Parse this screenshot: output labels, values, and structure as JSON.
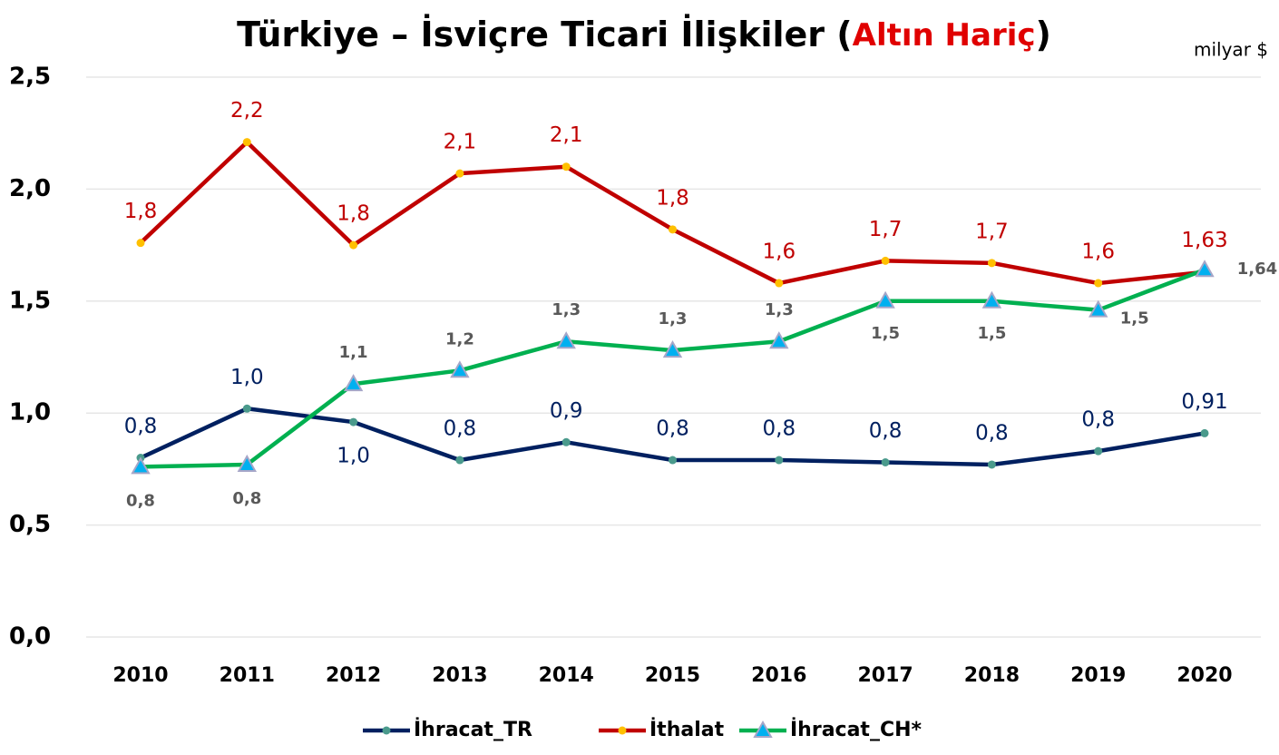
{
  "chart_data": {
    "type": "line",
    "title": "Türkiye – İsviçre Ticari İlişkiler",
    "title_suffix": [
      "(",
      "Altın Hariç",
      ")"
    ],
    "unit": "milyar $",
    "categories": [
      "2010",
      "2011",
      "2012",
      "2013",
      "2014",
      "2015",
      "2016",
      "2017",
      "2018",
      "2019",
      "2020"
    ],
    "ylim": [
      0,
      2.5
    ],
    "yticks": [
      {
        "value": 0,
        "label": "0,0"
      },
      {
        "value": 0.5,
        "label": "0,5"
      },
      {
        "value": 1,
        "label": "1,0"
      },
      {
        "value": 1.5,
        "label": "1,5"
      },
      {
        "value": 2,
        "label": "2,0"
      },
      {
        "value": 2.5,
        "label": "2,5"
      }
    ],
    "grid": true,
    "legend": "bottom",
    "series": [
      {
        "name": "İhracat_TR",
        "color": "#002060",
        "marker_color": "#4a9a8c",
        "values": [
          0.8,
          1.02,
          0.96,
          0.79,
          0.87,
          0.79,
          0.79,
          0.78,
          0.77,
          0.83,
          0.91
        ],
        "value_labels": [
          "0,8",
          "1,0",
          "1,0",
          "0,8",
          "0,9",
          "0,8",
          "0,8",
          "0,8",
          "0,8",
          "0,8",
          "0,91"
        ]
      },
      {
        "name": "İthalat",
        "color": "#c00000",
        "marker_color": "#ffc000",
        "values": [
          1.76,
          2.21,
          1.75,
          2.07,
          2.1,
          1.82,
          1.58,
          1.68,
          1.67,
          1.58,
          1.63
        ],
        "value_labels": [
          "1,8",
          "2,2",
          "1,8",
          "2,1",
          "2,1",
          "1,8",
          "1,6",
          "1,7",
          "1,7",
          "1,6",
          "1,63"
        ]
      },
      {
        "name": "İhracat_CH*",
        "color": "#00b050",
        "marker_color": "#00b0f0",
        "values": [
          0.76,
          0.77,
          1.13,
          1.19,
          1.32,
          1.28,
          1.32,
          1.5,
          1.5,
          1.46,
          1.64
        ],
        "value_labels": [
          "0,8",
          "0,8",
          "1,1",
          "1,2",
          "1,3",
          "1,3",
          "1,3",
          "1,5",
          "1,5",
          "1,5",
          "1,64"
        ]
      }
    ]
  }
}
